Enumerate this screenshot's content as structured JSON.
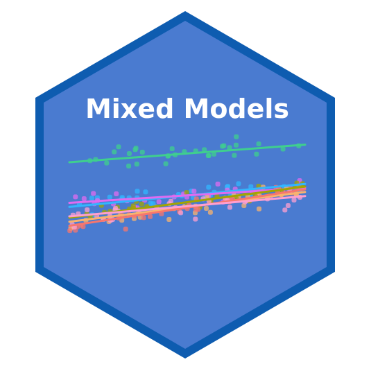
{
  "badge": {
    "title": "Mixed Models",
    "colors": {
      "hex_fill": "#4A7BD0",
      "hex_border": "#0E5CB0",
      "title": "#FFFFFF"
    }
  },
  "chart_data": {
    "type": "scatter",
    "title": "",
    "xlabel": "",
    "ylabel": "",
    "xlim": [
      0,
      1
    ],
    "ylim": [
      0,
      1
    ],
    "grid": false,
    "points_per_group": 32,
    "series": [
      {
        "color": "#3FCF8E",
        "line": {
          "x": [
            0,
            1
          ],
          "y": [
            0.8,
            0.93
          ]
        },
        "spread": 0.13
      },
      {
        "color": "#33B5FF",
        "line": {
          "x": [
            0,
            1
          ],
          "y": [
            0.47,
            0.64
          ]
        },
        "spread": 0.1
      },
      {
        "color": "#E06BF0",
        "line": {
          "x": [
            0,
            1
          ],
          "y": [
            0.5,
            0.61
          ]
        },
        "spread": 0.1
      },
      {
        "color": "#F9B36E",
        "line": {
          "x": [
            0,
            1
          ],
          "y": [
            0.36,
            0.58
          ]
        },
        "spread": 0.12
      },
      {
        "color": "#A3A500",
        "line": {
          "x": [
            0,
            1
          ],
          "y": [
            0.39,
            0.62
          ]
        },
        "spread": 0.09
      },
      {
        "color": "#F8766D",
        "line": {
          "x": [
            0,
            1
          ],
          "y": [
            0.33,
            0.6
          ]
        },
        "spread": 0.11
      },
      {
        "color": "#FF9FD0",
        "line": {
          "x": [
            0,
            1
          ],
          "y": [
            0.4,
            0.55
          ]
        },
        "spread": 0.12
      }
    ]
  }
}
